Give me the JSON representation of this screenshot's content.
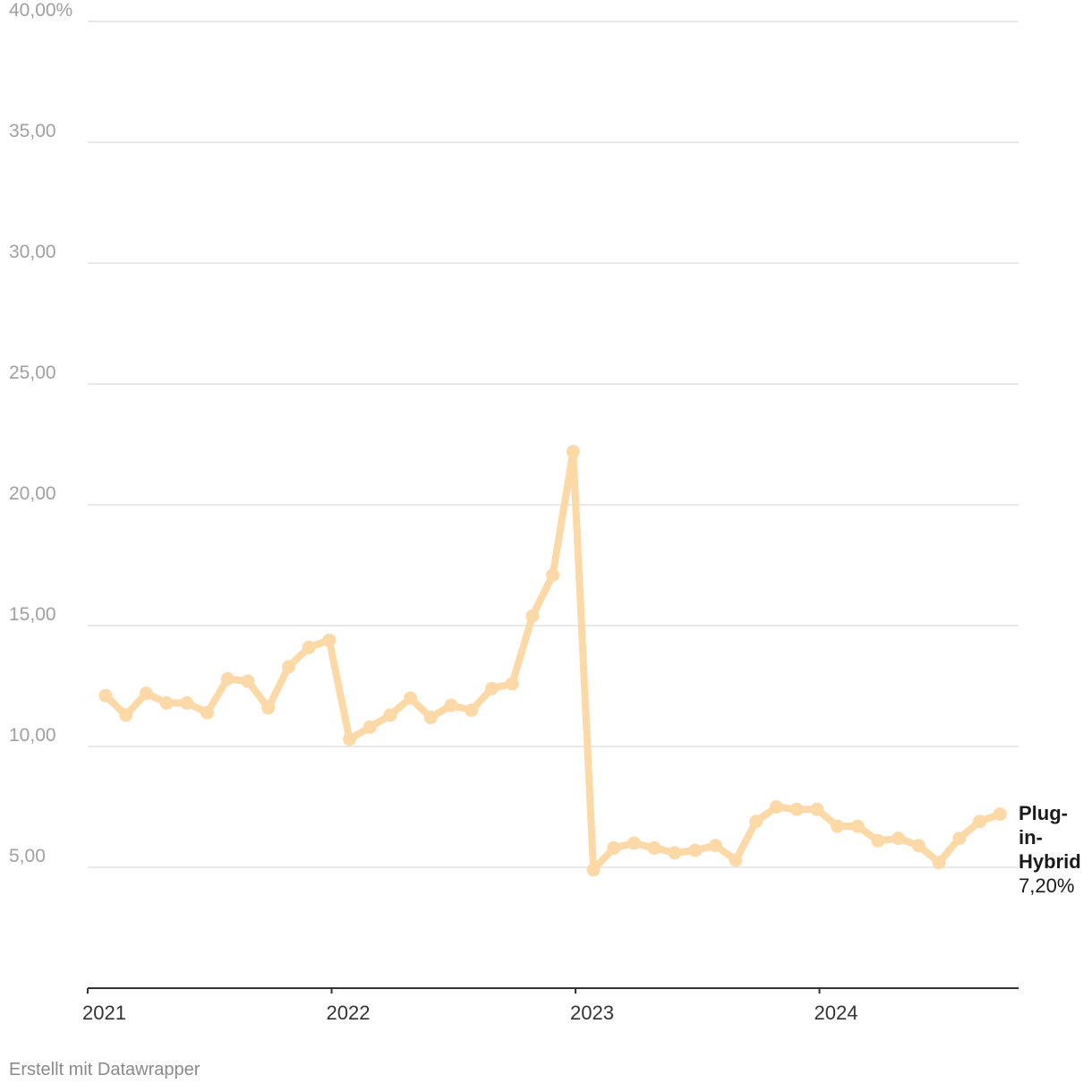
{
  "chart_data": {
    "type": "line",
    "y_ticks": [
      {
        "value": 40,
        "label": "40,00%"
      },
      {
        "value": 35,
        "label": "35,00"
      },
      {
        "value": 30,
        "label": "30,00"
      },
      {
        "value": 25,
        "label": "25,00"
      },
      {
        "value": 20,
        "label": "20,00"
      },
      {
        "value": 15,
        "label": "15,00"
      },
      {
        "value": 10,
        "label": "10,00"
      },
      {
        "value": 5,
        "label": "5,00"
      }
    ],
    "x_ticks": [
      {
        "value": "2021-01",
        "label": "2021"
      },
      {
        "value": "2022-01",
        "label": "2022"
      },
      {
        "value": "2023-01",
        "label": "2023"
      },
      {
        "value": "2024-01",
        "label": "2024"
      }
    ],
    "ylim": [
      0,
      40
    ],
    "xlim": [
      "2021-01",
      "2024-10"
    ],
    "grid": true,
    "series": [
      {
        "name": "Plug-in-Hybrid",
        "color": "#fdd9a8",
        "end_label": "7,20%",
        "x": [
          "2021-01",
          "2021-02",
          "2021-03",
          "2021-04",
          "2021-05",
          "2021-06",
          "2021-07",
          "2021-08",
          "2021-09",
          "2021-10",
          "2021-11",
          "2021-12",
          "2022-01",
          "2022-02",
          "2022-03",
          "2022-04",
          "2022-05",
          "2022-06",
          "2022-07",
          "2022-08",
          "2022-09",
          "2022-10",
          "2022-11",
          "2022-12",
          "2023-01",
          "2023-02",
          "2023-03",
          "2023-04",
          "2023-05",
          "2023-06",
          "2023-07",
          "2023-08",
          "2023-09",
          "2023-10",
          "2023-11",
          "2023-12",
          "2024-01",
          "2024-02",
          "2024-03",
          "2024-04",
          "2024-05",
          "2024-06",
          "2024-07",
          "2024-08",
          "2024-09"
        ],
        "values": [
          12.1,
          11.3,
          12.2,
          11.8,
          11.8,
          11.4,
          12.8,
          12.7,
          11.6,
          13.3,
          14.1,
          14.4,
          10.3,
          10.8,
          11.3,
          12.0,
          11.2,
          11.7,
          11.5,
          12.4,
          12.6,
          15.4,
          17.1,
          22.2,
          4.9,
          5.8,
          6.0,
          5.8,
          5.6,
          5.7,
          5.9,
          5.3,
          6.9,
          7.5,
          7.4,
          7.4,
          6.7,
          6.7,
          6.1,
          6.2,
          5.9,
          5.2,
          6.2,
          6.9,
          7.2
        ]
      }
    ]
  },
  "footer": {
    "credit": "Erstellt mit Datawrapper"
  }
}
